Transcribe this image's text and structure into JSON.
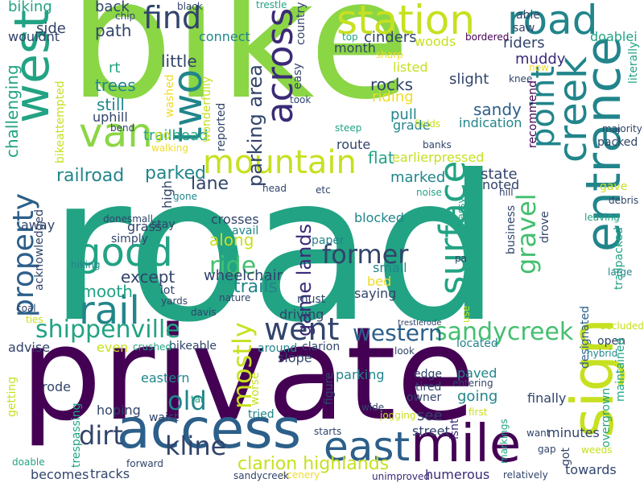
{
  "palette": {
    "dark_purple": "#440154",
    "indigo": "#3b2a78",
    "navy_blue": "#31446b",
    "slate_blue": "#2c5f8a",
    "teal_blue": "#21858b",
    "teal": "#22a384",
    "green": "#44bf70",
    "lime": "#8bd645",
    "yellow_green": "#c7e020",
    "yellow": "#f0dc24"
  },
  "words": [
    {
      "text": "bike",
      "color": "lime"
    },
    {
      "text": "road",
      "color": "teal"
    },
    {
      "text": "private",
      "color": "dark_purple"
    },
    {
      "text": "access",
      "color": "slate_blue"
    },
    {
      "text": "entrance",
      "color": "teal_blue"
    },
    {
      "text": "sign",
      "color": "yellow_green"
    },
    {
      "text": "mile",
      "color": "dark_purple"
    },
    {
      "text": "west",
      "color": "teal"
    },
    {
      "text": "station",
      "color": "yellow_green"
    },
    {
      "text": "road",
      "color": "teal_blue"
    },
    {
      "text": "creek",
      "color": "teal_blue"
    },
    {
      "text": "east",
      "color": "slate_blue"
    },
    {
      "text": "van",
      "color": "lime"
    },
    {
      "text": "two",
      "color": "teal_blue"
    },
    {
      "text": "across",
      "color": "indigo"
    },
    {
      "text": "mountain",
      "color": "yellow_green"
    },
    {
      "text": "point",
      "color": "teal_blue"
    },
    {
      "text": "surface",
      "color": "teal"
    },
    {
      "text": "rail",
      "color": "teal_blue"
    },
    {
      "text": "good",
      "color": "teal"
    },
    {
      "text": "property",
      "color": "slate_blue"
    },
    {
      "text": "went",
      "color": "navy_blue"
    },
    {
      "text": "find",
      "color": "navy_blue"
    },
    {
      "text": "shippenville",
      "color": "teal"
    },
    {
      "text": "sandycreek",
      "color": "green"
    },
    {
      "text": "gravel",
      "color": "green"
    },
    {
      "text": "former",
      "color": "navy_blue"
    },
    {
      "text": "western",
      "color": "slate_blue"
    },
    {
      "text": "dirt",
      "color": "navy_blue"
    },
    {
      "text": "kline",
      "color": "navy_blue"
    },
    {
      "text": "clarion highlands",
      "color": "yellow_green"
    },
    {
      "text": "mostly",
      "color": "yellow_green"
    },
    {
      "text": "old",
      "color": "teal_blue"
    },
    {
      "text": "ride",
      "color": "green"
    },
    {
      "text": "parking area",
      "color": "navy_blue"
    },
    {
      "text": "game lands",
      "color": "indigo"
    },
    {
      "text": "railroad",
      "color": "teal_blue"
    },
    {
      "text": "parked",
      "color": "teal_blue"
    },
    {
      "text": "trailhead",
      "color": "teal"
    },
    {
      "text": "lane",
      "color": "navy_blue"
    },
    {
      "text": "along",
      "color": "yellow_green"
    },
    {
      "text": "wheelchair",
      "color": "navy_blue"
    },
    {
      "text": "trails",
      "color": "teal_blue"
    },
    {
      "text": "except",
      "color": "navy_blue"
    },
    {
      "text": "smooth",
      "color": "teal"
    },
    {
      "text": "path",
      "color": "navy_blue"
    },
    {
      "text": "little",
      "color": "navy_blue"
    },
    {
      "text": "trees",
      "color": "teal_blue"
    },
    {
      "text": "still",
      "color": "teal_blue"
    },
    {
      "text": "rt",
      "color": "teal"
    },
    {
      "text": "uphill",
      "color": "navy_blue"
    },
    {
      "text": "back",
      "color": "navy_blue"
    },
    {
      "text": "side",
      "color": "navy_blue"
    },
    {
      "text": "biking",
      "color": "teal"
    },
    {
      "text": "wouldnt",
      "color": "navy_blue"
    },
    {
      "text": "challenging",
      "color": "teal"
    },
    {
      "text": "bikeattempted",
      "color": "yellow_green"
    },
    {
      "text": "riders",
      "color": "navy_blue"
    },
    {
      "text": "muddy",
      "color": "indigo"
    },
    {
      "text": "rocks",
      "color": "navy_blue"
    },
    {
      "text": "riding",
      "color": "yellow"
    },
    {
      "text": "slight",
      "color": "navy_blue"
    },
    {
      "text": "sandy",
      "color": "slate_blue"
    },
    {
      "text": "indication",
      "color": "teal_blue"
    },
    {
      "text": "cinders",
      "color": "navy_blue"
    },
    {
      "text": "woods",
      "color": "yellow_green"
    },
    {
      "text": "month",
      "color": "navy_blue"
    },
    {
      "text": "listed",
      "color": "yellow_green"
    },
    {
      "text": "pull",
      "color": "teal_blue"
    },
    {
      "text": "grade",
      "color": "teal_blue"
    },
    {
      "text": "route",
      "color": "navy_blue"
    },
    {
      "text": "flat",
      "color": "teal"
    },
    {
      "text": "earlierpressed",
      "color": "yellow_green"
    },
    {
      "text": "marked",
      "color": "teal_blue"
    },
    {
      "text": "state",
      "color": "navy_blue"
    },
    {
      "text": "noted",
      "color": "navy_blue"
    },
    {
      "text": "blocked",
      "color": "teal_blue"
    },
    {
      "text": "crosses",
      "color": "navy_blue"
    },
    {
      "text": "avail",
      "color": "teal_blue"
    },
    {
      "text": "stay",
      "color": "navy_blue"
    },
    {
      "text": "grass",
      "color": "navy_blue"
    },
    {
      "text": "simply",
      "color": "navy_blue"
    },
    {
      "text": "high",
      "color": "navy_blue"
    },
    {
      "text": "paper",
      "color": "teal_blue"
    },
    {
      "text": "small",
      "color": "teal_blue"
    },
    {
      "text": "bed",
      "color": "yellow"
    },
    {
      "text": "saying",
      "color": "navy_blue"
    },
    {
      "text": "must",
      "color": "navy_blue"
    },
    {
      "text": "driving",
      "color": "navy_blue"
    },
    {
      "text": "lot",
      "color": "navy_blue"
    },
    {
      "text": "away",
      "color": "navy_blue"
    },
    {
      "text": "acknowledged",
      "color": "navy_blue"
    },
    {
      "text": "connect",
      "color": "teal_blue"
    },
    {
      "text": "go",
      "color": "yellow_green"
    },
    {
      "text": "reported",
      "color": "navy_blue"
    },
    {
      "text": "washed",
      "color": "yellow"
    },
    {
      "text": "wonderfully",
      "color": "yellow_green"
    },
    {
      "text": "country",
      "color": "navy_blue"
    },
    {
      "text": "easy",
      "color": "navy_blue"
    },
    {
      "text": "took",
      "color": "navy_blue"
    },
    {
      "text": "trestle",
      "color": "teal"
    },
    {
      "text": "black",
      "color": "navy_blue"
    },
    {
      "text": "chip",
      "color": "navy_blue"
    },
    {
      "text": "able",
      "color": "navy_blue"
    },
    {
      "text": "saw",
      "color": "navy_blue"
    },
    {
      "text": "doablei",
      "color": "teal"
    },
    {
      "text": "bordered",
      "color": "dark_purple"
    },
    {
      "text": "top",
      "color": "teal"
    },
    {
      "text": "sharp",
      "color": "yellow"
    },
    {
      "text": "now",
      "color": "yellow"
    },
    {
      "text": "literally",
      "color": "teal"
    },
    {
      "text": "knee",
      "color": "navy_blue"
    },
    {
      "text": "recommend",
      "color": "dark_purple"
    },
    {
      "text": "majority",
      "color": "navy_blue"
    },
    {
      "text": "packed",
      "color": "navy_blue"
    },
    {
      "text": "trailpacked",
      "color": "teal"
    },
    {
      "text": "gave",
      "color": "yellow_green"
    },
    {
      "text": "hill",
      "color": "navy_blue"
    },
    {
      "text": "grassy",
      "color": "teal"
    },
    {
      "text": "debris",
      "color": "navy_blue"
    },
    {
      "text": "leaving",
      "color": "teal"
    },
    {
      "text": "large",
      "color": "teal_blue"
    },
    {
      "text": "secluded",
      "color": "yellow_green"
    },
    {
      "text": "designated",
      "color": "slate_blue"
    },
    {
      "text": "open",
      "color": "navy_blue"
    },
    {
      "text": "hybrid",
      "color": "teal_blue"
    },
    {
      "text": "maintained",
      "color": "teal"
    },
    {
      "text": "overgrown",
      "color": "teal"
    },
    {
      "text": "towards",
      "color": "navy_blue"
    },
    {
      "text": "minutes",
      "color": "navy_blue"
    },
    {
      "text": "finally",
      "color": "navy_blue"
    },
    {
      "text": "business",
      "color": "navy_blue"
    },
    {
      "text": "drove",
      "color": "navy_blue"
    },
    {
      "text": "pa",
      "color": "navy_blue"
    },
    {
      "text": "located",
      "color": "teal_blue"
    },
    {
      "text": "trestlerode",
      "color": "navy_blue"
    },
    {
      "text": "use",
      "color": "yellow_green"
    },
    {
      "text": "look",
      "color": "navy_blue"
    },
    {
      "text": "paved",
      "color": "teal_blue"
    },
    {
      "text": "going",
      "color": "teal_blue"
    },
    {
      "text": "edge",
      "color": "navy_blue"
    },
    {
      "text": "tired",
      "color": "navy_blue"
    },
    {
      "text": "owner",
      "color": "navy_blue"
    },
    {
      "text": "entering",
      "color": "navy_blue"
    },
    {
      "text": "first",
      "color": "yellow_green"
    },
    {
      "text": "want",
      "color": "navy_blue"
    },
    {
      "text": "gap",
      "color": "navy_blue"
    },
    {
      "text": "got",
      "color": "navy_blue"
    },
    {
      "text": "weeds",
      "color": "yellow_green"
    },
    {
      "text": "relatively",
      "color": "navy_blue"
    },
    {
      "text": "markings",
      "color": "teal"
    },
    {
      "text": "humerous",
      "color": "indigo"
    },
    {
      "text": "isnt",
      "color": "indigo"
    },
    {
      "text": "street",
      "color": "navy_blue"
    },
    {
      "text": "see",
      "color": "navy_blue"
    },
    {
      "text": "jogging",
      "color": "yellow_green"
    },
    {
      "text": "wide",
      "color": "navy_blue"
    },
    {
      "text": "unimproved",
      "color": "indigo"
    },
    {
      "text": "scenery",
      "color": "yellow"
    },
    {
      "text": "sandycreek",
      "color": "navy_blue"
    },
    {
      "text": "starts",
      "color": "navy_blue"
    },
    {
      "text": "figure",
      "color": "navy_blue"
    },
    {
      "text": "around",
      "color": "teal_blue"
    },
    {
      "text": "clarion",
      "color": "navy_blue"
    },
    {
      "text": "slope",
      "color": "navy_blue"
    },
    {
      "text": "worse",
      "color": "yellow_green"
    },
    {
      "text": "tried",
      "color": "teal_blue"
    },
    {
      "text": "trespassing",
      "color": "teal"
    },
    {
      "text": "waist",
      "color": "navy_blue"
    },
    {
      "text": "hoping",
      "color": "navy_blue"
    },
    {
      "text": "eastern",
      "color": "teal_blue"
    },
    {
      "text": "bikeable",
      "color": "navy_blue"
    },
    {
      "text": "crushed",
      "color": "teal"
    },
    {
      "text": "even",
      "color": "yellow_green"
    },
    {
      "text": "davis",
      "color": "navy_blue"
    },
    {
      "text": "yards",
      "color": "navy_blue"
    },
    {
      "text": "nature",
      "color": "navy_blue"
    },
    {
      "text": "advise",
      "color": "navy_blue"
    },
    {
      "text": "ties",
      "color": "yellow_green"
    },
    {
      "text": "coal",
      "color": "navy_blue"
    },
    {
      "text": "hiking",
      "color": "teal_blue"
    },
    {
      "text": "donesmall",
      "color": "navy_blue"
    },
    {
      "text": "gone",
      "color": "teal_blue"
    },
    {
      "text": "head",
      "color": "navy_blue"
    },
    {
      "text": "etc",
      "color": "navy_blue"
    },
    {
      "text": "noise",
      "color": "teal"
    },
    {
      "text": "fields",
      "color": "yellow_green"
    },
    {
      "text": "steep",
      "color": "teal"
    },
    {
      "text": "banks",
      "color": "navy_blue"
    },
    {
      "text": "walking",
      "color": "yellow"
    },
    {
      "text": "bend",
      "color": "navy_blue"
    },
    {
      "text": "rode",
      "color": "navy_blue"
    },
    {
      "text": "getting",
      "color": "yellow_green"
    },
    {
      "text": "parking",
      "color": "teal_blue"
    },
    {
      "text": "tar",
      "color": "teal"
    },
    {
      "text": "doable",
      "color": "teal"
    },
    {
      "text": "forward",
      "color": "navy_blue"
    },
    {
      "text": "becomes",
      "color": "navy_blue"
    },
    {
      "text": "tracks",
      "color": "navy_blue"
    }
  ]
}
